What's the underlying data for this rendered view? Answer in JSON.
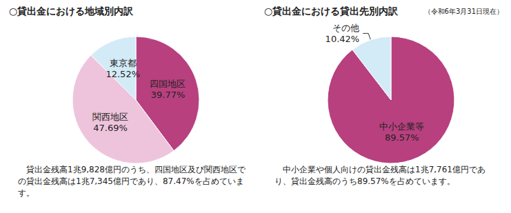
{
  "chart_data": [
    {
      "type": "pie",
      "title": "○貸出金における地域別内訳",
      "categories": [
        "四国地区",
        "関西地区",
        "東京都"
      ],
      "values": [
        39.77,
        47.69,
        12.52
      ],
      "value_labels": [
        "39.77%",
        "47.69%",
        "12.52%"
      ],
      "colors": [
        "#b8407f",
        "#eec4dc",
        "#d3ebf7"
      ],
      "data_labels": true,
      "annotations": [
        "貸出金残高1兆9,828億円のうち、四国地区及び関西地区での貸出金残高は1兆7,345億円であり、87.47%を占めています。"
      ]
    },
    {
      "type": "pie",
      "title": "○貸出金における貸出先別内訳",
      "subtitle": "（令和6年3月31日現在）",
      "categories": [
        "中小企業等",
        "その他"
      ],
      "values": [
        89.57,
        10.42
      ],
      "value_labels": [
        "89.57%",
        "10.42%"
      ],
      "colors": [
        "#b8407f",
        "#d3ebf7"
      ],
      "data_labels": true,
      "annotations": [
        "中小企業や個人向けの貸出金残高は1兆7,761億円であり、貸出金残高のうち89.57%を占めています。"
      ]
    }
  ]
}
